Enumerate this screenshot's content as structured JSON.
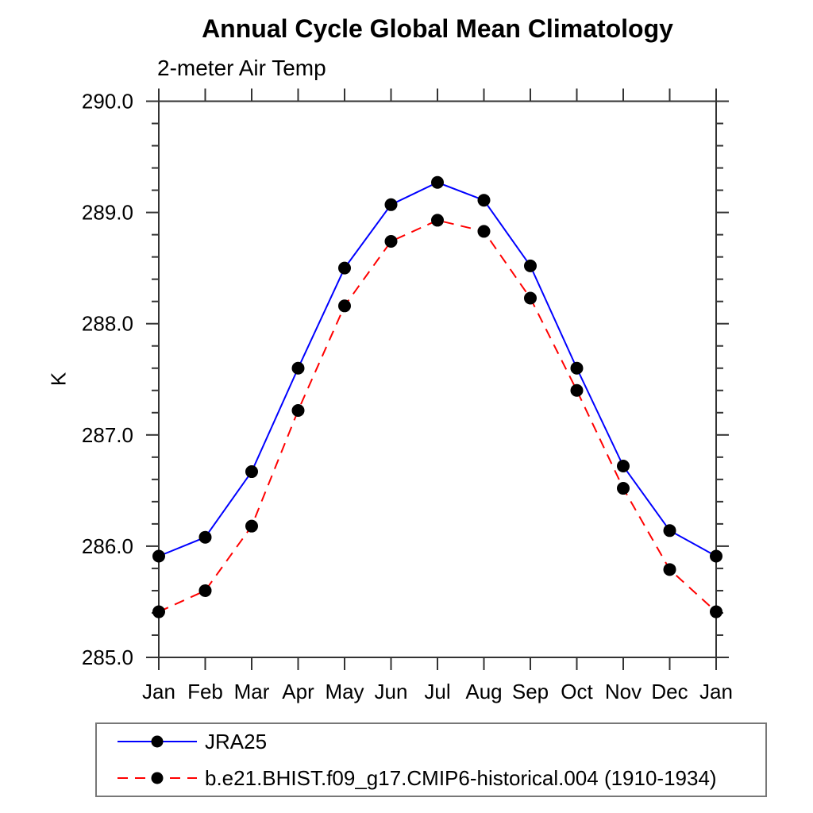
{
  "page": {
    "background": "#ffffff"
  },
  "chart": {
    "title": "Annual Cycle Global Mean Climatology",
    "subtitle": "2-meter Air Temp",
    "ylabel": "K"
  },
  "legend": {
    "position": "bottom-left",
    "items": [
      {
        "label": "JRA25",
        "color": "#0000ff",
        "line_style": "solid",
        "marker": "filled-circle",
        "marker_color": "#000000"
      },
      {
        "label": "b.e21.BHIST.f09_g17.CMIP6-historical.004 (1910-1934)",
        "color": "#ff0000",
        "line_style": "dashed",
        "marker": "filled-circle",
        "marker_color": "#000000"
      }
    ]
  },
  "chart_data": {
    "type": "line",
    "title": "Annual Cycle Global Mean Climatology",
    "subtitle": "2-meter Air Temp",
    "xlabel": "",
    "ylabel": "K",
    "categories": [
      "Jan",
      "Feb",
      "Mar",
      "Apr",
      "May",
      "Jun",
      "Jul",
      "Aug",
      "Sep",
      "Oct",
      "Nov",
      "Dec",
      "Jan"
    ],
    "series": [
      {
        "name": "JRA25",
        "color": "#0000ff",
        "line_style": "solid",
        "marker": "filled-circle",
        "marker_color": "#000000",
        "values": [
          285.91,
          286.08,
          286.67,
          287.6,
          288.5,
          289.07,
          289.27,
          289.11,
          288.52,
          287.6,
          286.72,
          286.14,
          285.91
        ]
      },
      {
        "name": "b.e21.BHIST.f09_g17.CMIP6-historical.004 (1910-1934)",
        "color": "#ff0000",
        "line_style": "dashed",
        "marker": "filled-circle",
        "marker_color": "#000000",
        "values": [
          285.41,
          285.6,
          286.18,
          287.22,
          288.16,
          288.74,
          288.93,
          288.83,
          288.23,
          287.4,
          286.52,
          285.79,
          285.41
        ]
      }
    ],
    "ylim": [
      285.0,
      290.0
    ],
    "y_major_step": 1.0,
    "y_minor_step": 0.2,
    "y_tick_format": "one-decimal",
    "grid": false,
    "ticks_direction": "outward",
    "axis_color": "#333333",
    "legend_position": "bottom-left"
  }
}
